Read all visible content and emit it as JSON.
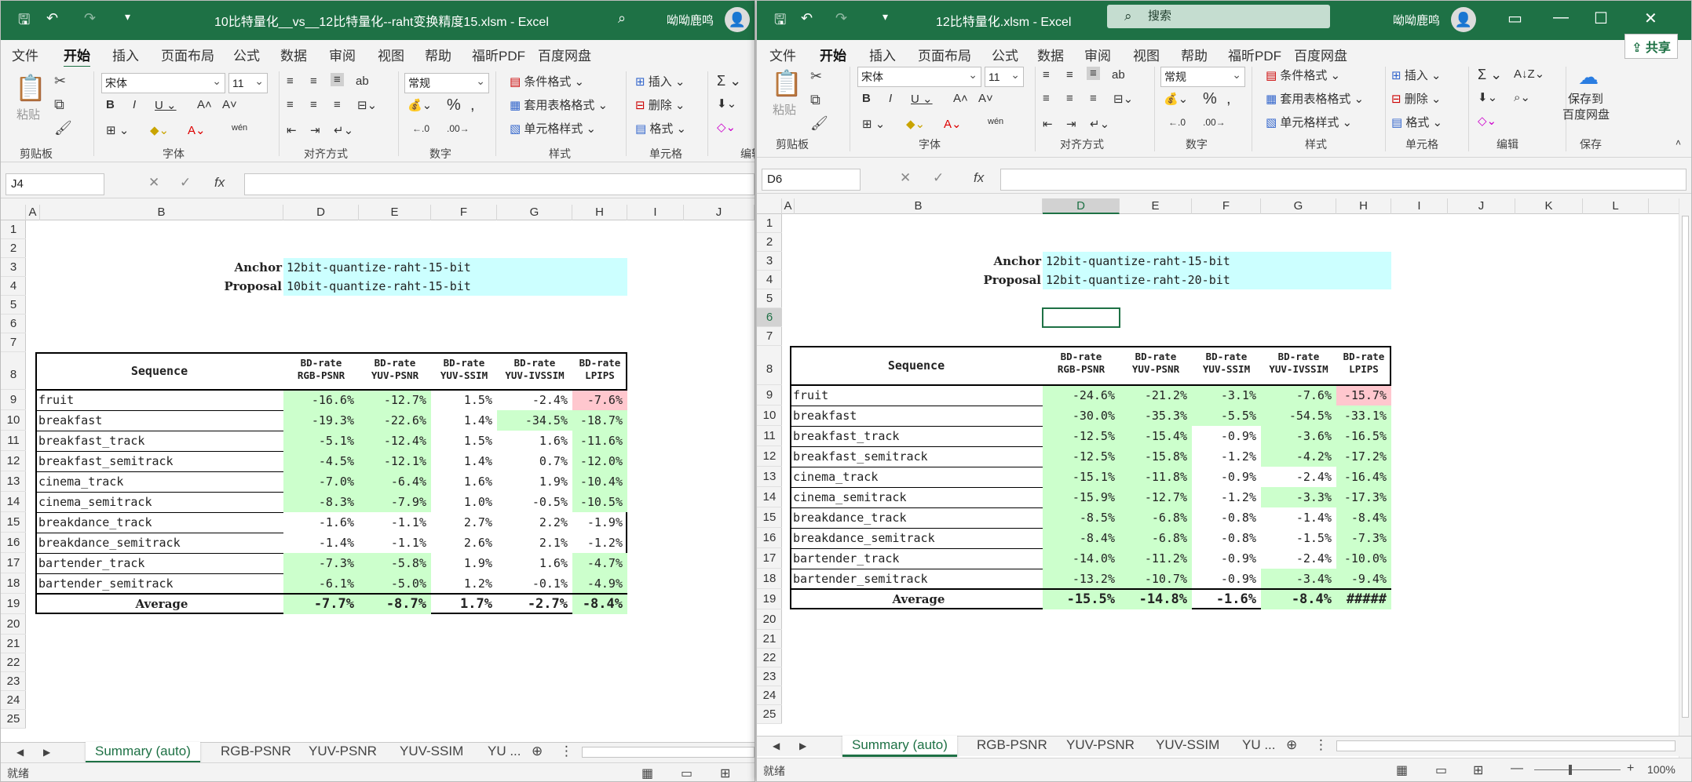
{
  "windows": [
    {
      "title": "10比特量化__vs__12比特量化--raht变换精度15.xlsm  -  Excel",
      "user": "呦呦鹿鸣",
      "tabs": [
        "文件",
        "开始",
        "插入",
        "页面布局",
        "公式",
        "数据",
        "审阅",
        "视图",
        "帮助",
        "福昕PDF",
        "百度网盘"
      ],
      "active_tab": "开始",
      "ribbon": {
        "paste": "粘贴",
        "font": "宋体",
        "size": "11",
        "number_format": "常规",
        "cond_format": "条件格式",
        "table_format": "套用表格格式",
        "cell_style": "单元格样式",
        "insert": "插入",
        "delete": "删除",
        "format": "格式",
        "groups": [
          "剪贴板",
          "字体",
          "对齐方式",
          "数字",
          "样式",
          "单元格",
          "编辑"
        ]
      },
      "name_box": "J4",
      "anchor_label": "Anchor",
      "anchor_value": "12bit-quantize-raht-15-bit",
      "proposal_label": "Proposal",
      "proposal_value": "10bit-quantize-raht-15-bit",
      "sequence_header": "Sequence",
      "metric_headers": [
        [
          "BD-rate",
          "RGB-PSNR"
        ],
        [
          "BD-rate",
          "YUV-PSNR"
        ],
        [
          "BD-rate",
          "YUV-SSIM"
        ],
        [
          "BD-rate",
          "YUV-IVSSIM"
        ],
        [
          "BD-rate",
          "LPIPS"
        ]
      ],
      "rows": [
        {
          "name": "fruit",
          "v": [
            "-16.6%",
            "-12.7%",
            "1.5%",
            "-2.4%",
            "-7.6%"
          ],
          "h": [
            "g",
            "g",
            "",
            "",
            "r"
          ]
        },
        {
          "name": "breakfast",
          "v": [
            "-19.3%",
            "-22.6%",
            "1.4%",
            "-34.5%",
            "-18.7%"
          ],
          "h": [
            "g",
            "g",
            "",
            "g",
            "g"
          ]
        },
        {
          "name": "breakfast_track",
          "v": [
            "-5.1%",
            "-12.4%",
            "1.5%",
            "1.6%",
            "-11.6%"
          ],
          "h": [
            "g",
            "g",
            "",
            "",
            "g"
          ]
        },
        {
          "name": "breakfast_semitrack",
          "v": [
            "-4.5%",
            "-12.1%",
            "1.4%",
            "0.7%",
            "-12.0%"
          ],
          "h": [
            "g",
            "g",
            "",
            "",
            "g"
          ]
        },
        {
          "name": "cinema_track",
          "v": [
            "-7.0%",
            "-6.4%",
            "1.6%",
            "1.9%",
            "-10.4%"
          ],
          "h": [
            "g",
            "g",
            "",
            "",
            "g"
          ]
        },
        {
          "name": "cinema_semitrack",
          "v": [
            "-8.3%",
            "-7.9%",
            "1.0%",
            "-0.5%",
            "-10.5%"
          ],
          "h": [
            "g",
            "g",
            "",
            "",
            "g"
          ]
        },
        {
          "name": "breakdance_track",
          "v": [
            "-1.6%",
            "-1.1%",
            "2.7%",
            "2.2%",
            "-1.9%"
          ],
          "h": [
            "",
            "",
            "",
            "",
            ""
          ]
        },
        {
          "name": "breakdance_semitrack",
          "v": [
            "-1.4%",
            "-1.1%",
            "2.6%",
            "2.1%",
            "-1.2%"
          ],
          "h": [
            "",
            "",
            "",
            "",
            ""
          ]
        },
        {
          "name": "bartender_track",
          "v": [
            "-7.3%",
            "-5.8%",
            "1.9%",
            "1.6%",
            "-4.7%"
          ],
          "h": [
            "g",
            "g",
            "",
            "",
            "g"
          ]
        },
        {
          "name": "bartender_semitrack",
          "v": [
            "-6.1%",
            "-5.0%",
            "1.2%",
            "-0.1%",
            "-4.9%"
          ],
          "h": [
            "g",
            "g",
            "",
            "",
            "g"
          ]
        }
      ],
      "average": {
        "label": "Average",
        "v": [
          "-7.7%",
          "-8.7%",
          "1.7%",
          "-2.7%",
          "-8.4%"
        ],
        "h": [
          "g",
          "g",
          "",
          "",
          "g"
        ]
      },
      "sheet_tabs": [
        "Summary (auto)",
        "RGB-PSNR",
        "YUV-PSNR",
        "YUV-SSIM",
        "YU ..."
      ],
      "status": "就绪"
    },
    {
      "title": "12比特量化.xlsm  -  Excel",
      "search": "搜索",
      "user": "呦呦鹿鸣",
      "share": "共享",
      "tabs": [
        "文件",
        "开始",
        "插入",
        "页面布局",
        "公式",
        "数据",
        "审阅",
        "视图",
        "帮助",
        "福昕PDF",
        "百度网盘"
      ],
      "active_tab": "开始",
      "ribbon": {
        "paste": "粘贴",
        "font": "宋体",
        "size": "11",
        "number_format": "常规",
        "cond_format": "条件格式",
        "table_format": "套用表格格式",
        "cell_style": "单元格样式",
        "insert": "插入",
        "delete": "删除",
        "format": "格式",
        "save_baidu": "保存到",
        "save_baidu2": "百度网盘",
        "groups": [
          "剪贴板",
          "字体",
          "对齐方式",
          "数字",
          "样式",
          "单元格",
          "编辑",
          "保存"
        ]
      },
      "name_box": "D6",
      "anchor_label": "Anchor",
      "anchor_value": "12bit-quantize-raht-15-bit",
      "proposal_label": "Proposal",
      "proposal_value": "12bit-quantize-raht-20-bit",
      "sequence_header": "Sequence",
      "metric_headers": [
        [
          "BD-rate",
          "RGB-PSNR"
        ],
        [
          "BD-rate",
          "YUV-PSNR"
        ],
        [
          "BD-rate",
          "YUV-SSIM"
        ],
        [
          "BD-rate",
          "YUV-IVSSIM"
        ],
        [
          "BD-rate",
          "LPIPS"
        ]
      ],
      "rows": [
        {
          "name": "fruit",
          "v": [
            "-24.6%",
            "-21.2%",
            "-3.1%",
            "-7.6%",
            "-15.7%"
          ],
          "h": [
            "g",
            "g",
            "g",
            "g",
            "r"
          ]
        },
        {
          "name": "breakfast",
          "v": [
            "-30.0%",
            "-35.3%",
            "-5.5%",
            "-54.5%",
            "-33.1%"
          ],
          "h": [
            "g",
            "g",
            "g",
            "g",
            "g"
          ]
        },
        {
          "name": "breakfast_track",
          "v": [
            "-12.5%",
            "-15.4%",
            "-0.9%",
            "-3.6%",
            "-16.5%"
          ],
          "h": [
            "g",
            "g",
            "",
            "g",
            "g"
          ]
        },
        {
          "name": "breakfast_semitrack",
          "v": [
            "-12.5%",
            "-15.8%",
            "-1.2%",
            "-4.2%",
            "-17.2%"
          ],
          "h": [
            "g",
            "g",
            "",
            "g",
            "g"
          ]
        },
        {
          "name": "cinema_track",
          "v": [
            "-15.1%",
            "-11.8%",
            "-0.9%",
            "-2.4%",
            "-16.4%"
          ],
          "h": [
            "g",
            "g",
            "",
            "",
            "g"
          ]
        },
        {
          "name": "cinema_semitrack",
          "v": [
            "-15.9%",
            "-12.7%",
            "-1.2%",
            "-3.3%",
            "-17.3%"
          ],
          "h": [
            "g",
            "g",
            "",
            "g",
            "g"
          ]
        },
        {
          "name": "breakdance_track",
          "v": [
            "-8.5%",
            "-6.8%",
            "-0.8%",
            "-1.4%",
            "-8.4%"
          ],
          "h": [
            "g",
            "g",
            "",
            "",
            "g"
          ]
        },
        {
          "name": "breakdance_semitrack",
          "v": [
            "-8.4%",
            "-6.8%",
            "-0.8%",
            "-1.5%",
            "-7.3%"
          ],
          "h": [
            "g",
            "g",
            "",
            "",
            "g"
          ]
        },
        {
          "name": "bartender_track",
          "v": [
            "-14.0%",
            "-11.2%",
            "-0.9%",
            "-2.4%",
            "-10.0%"
          ],
          "h": [
            "g",
            "g",
            "",
            "",
            "g"
          ]
        },
        {
          "name": "bartender_semitrack",
          "v": [
            "-13.2%",
            "-10.7%",
            "-0.9%",
            "-3.4%",
            "-9.4%"
          ],
          "h": [
            "g",
            "g",
            "",
            "g",
            "g"
          ]
        }
      ],
      "average": {
        "label": "Average",
        "v": [
          "-15.5%",
          "-14.8%",
          "-1.6%",
          "-8.4%",
          "#####"
        ],
        "h": [
          "g",
          "g",
          "",
          "g",
          "g"
        ]
      },
      "sheet_tabs": [
        "Summary (auto)",
        "RGB-PSNR",
        "YUV-PSNR",
        "YUV-SSIM",
        "YU ..."
      ],
      "status": "就绪",
      "zoom": "100%"
    }
  ],
  "colors": {
    "excel_green": "#1e7145",
    "good": "#ccffcc",
    "bad": "#ffc7ce",
    "label": "#ccffff"
  }
}
